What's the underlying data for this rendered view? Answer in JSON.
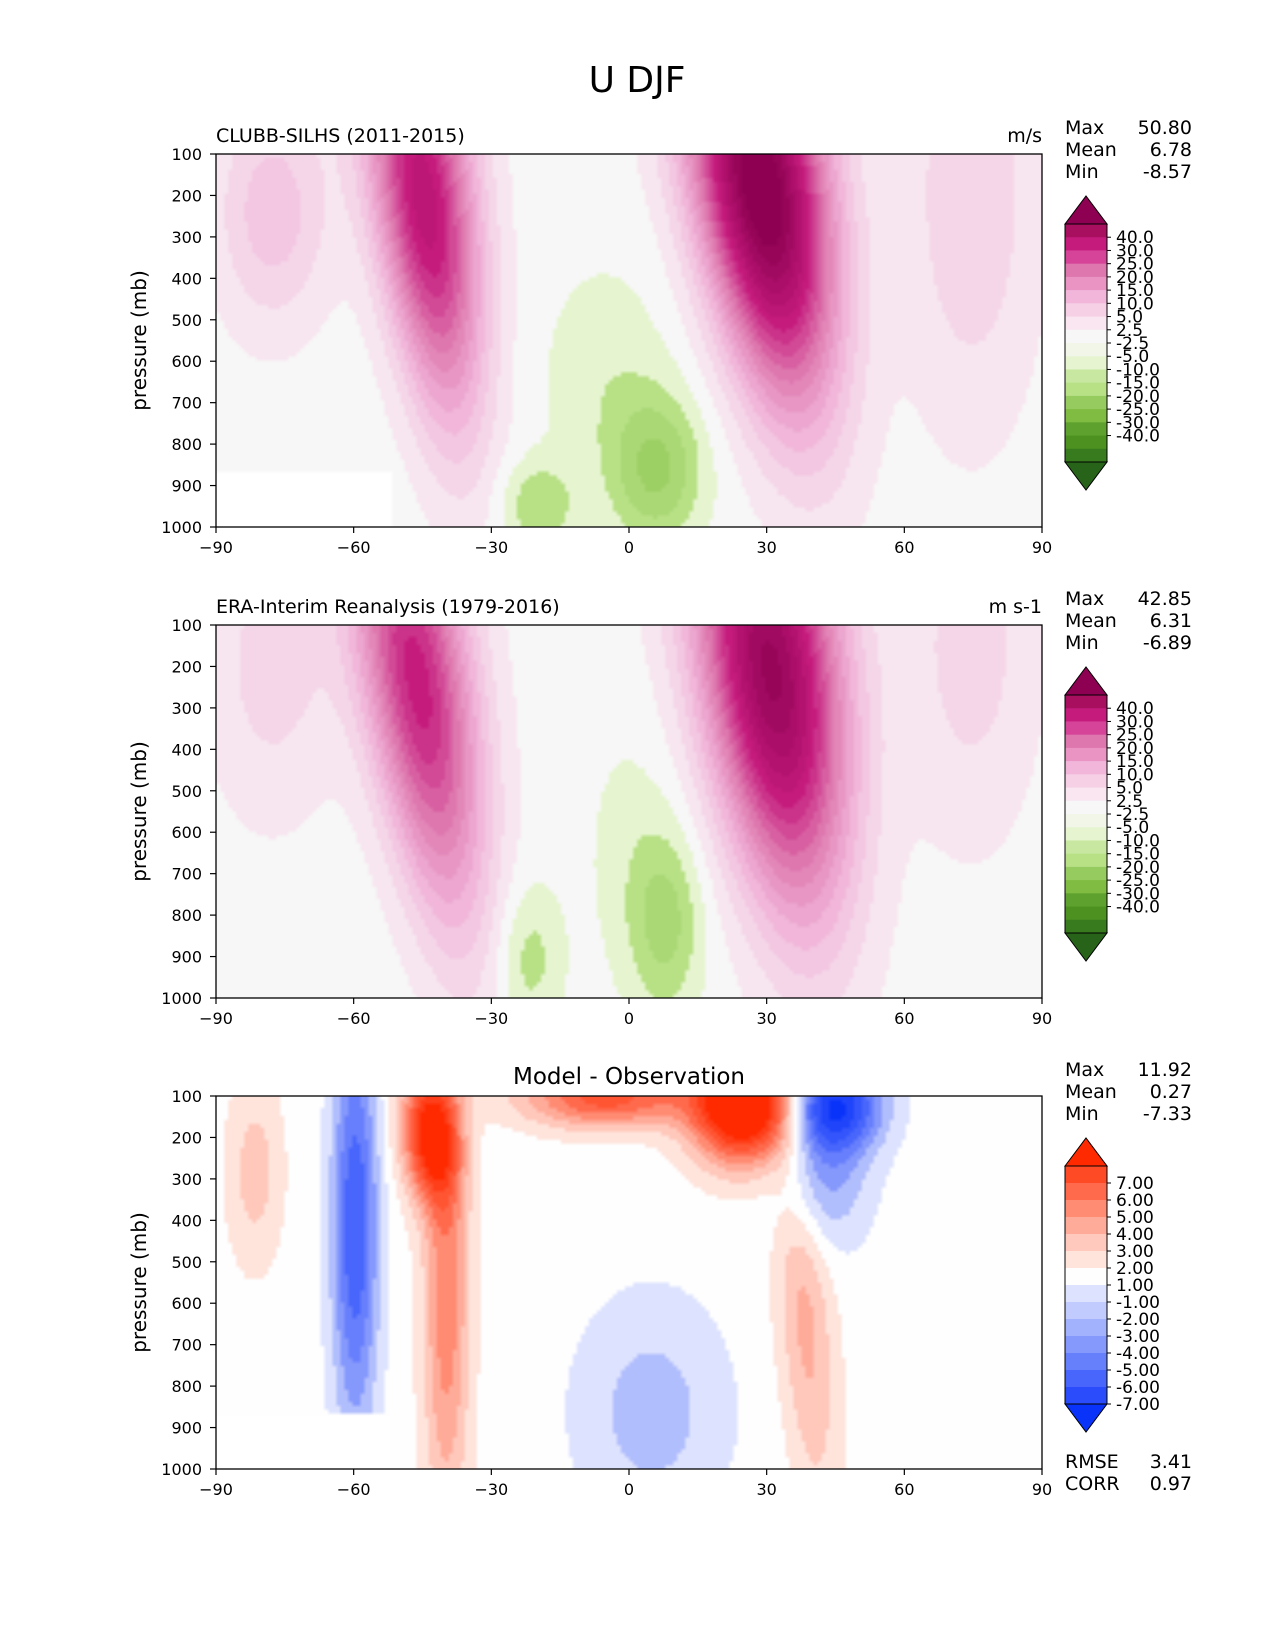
{
  "figure": {
    "title": "U DJF"
  },
  "panels": [
    {
      "title": "CLUBB-SILHS (2011-2015)",
      "units": "m/s",
      "stats": [
        {
          "label": "Max",
          "value": "50.80"
        },
        {
          "label": "Mean",
          "value": "6.78"
        },
        {
          "label": "Min",
          "value": "-8.57"
        }
      ],
      "colorbar": {
        "labels": [
          "40.0",
          "30.0",
          "25.0",
          "20.0",
          "15.0",
          "10.0",
          "5.0",
          "2.5",
          "-2.5",
          "-5.0",
          "-10.0",
          "-15.0",
          "-20.0",
          "-25.0",
          "-30.0",
          "-40.0"
        ],
        "colors": [
          "#8e0152",
          "#a8105f",
          "#c51b7d",
          "#d6449a",
          "#de77ae",
          "#e994c2",
          "#f1b6da",
          "#f6d1e6",
          "#f9e6f0",
          "#f7f7f7",
          "#f1f6e8",
          "#e6f5d0",
          "#c8e8a2",
          "#b8e186",
          "#96cb5f",
          "#7fbc41",
          "#5fa12f",
          "#4d9221",
          "#387a1e",
          "#276419"
        ],
        "under_color": "#276419",
        "over_color": "#8e0152"
      }
    },
    {
      "title": "ERA-Interim Reanalysis (1979-2016)",
      "units": "m s-1",
      "stats": [
        {
          "label": "Max",
          "value": "42.85"
        },
        {
          "label": "Mean",
          "value": "6.31"
        },
        {
          "label": "Min",
          "value": "-6.89"
        }
      ],
      "colorbar": {
        "labels": [
          "40.0",
          "30.0",
          "25.0",
          "20.0",
          "15.0",
          "10.0",
          "5.0",
          "2.5",
          "-2.5",
          "-5.0",
          "-10.0",
          "-15.0",
          "-20.0",
          "-25.0",
          "-30.0",
          "-40.0"
        ],
        "colors": [
          "#8e0152",
          "#a8105f",
          "#c51b7d",
          "#d6449a",
          "#de77ae",
          "#e994c2",
          "#f1b6da",
          "#f6d1e6",
          "#f9e6f0",
          "#f7f7f7",
          "#f1f6e8",
          "#e6f5d0",
          "#c8e8a2",
          "#b8e186",
          "#96cb5f",
          "#7fbc41",
          "#5fa12f",
          "#4d9221",
          "#387a1e",
          "#276419"
        ],
        "under_color": "#276419",
        "over_color": "#8e0152"
      }
    },
    {
      "title": "Model - Observation",
      "units": "",
      "stats": [
        {
          "label": "Max",
          "value": "11.92"
        },
        {
          "label": "Mean",
          "value": "0.27"
        },
        {
          "label": "Min",
          "value": "-7.33"
        }
      ],
      "extra_stats": [
        {
          "label": "RMSE",
          "value": "3.41"
        },
        {
          "label": "CORR",
          "value": "0.97"
        }
      ],
      "colorbar": {
        "labels": [
          "7.00",
          "6.00",
          "5.00",
          "4.00",
          "3.00",
          "2.00",
          "1.00",
          "-1.00",
          "-2.00",
          "-3.00",
          "-4.00",
          "-5.00",
          "-6.00",
          "-7.00"
        ],
        "colors": [
          "#ff2a00",
          "#ff4a26",
          "#ff6a4d",
          "#ff8c73",
          "#ffab99",
          "#ffc9bd",
          "#ffe4dc",
          "#fefefe",
          "#dde3fe",
          "#c1cbfe",
          "#a3b2fd",
          "#8598fc",
          "#6680fb",
          "#4866fb",
          "#2a4cfa",
          "#0a33fa"
        ],
        "under_color": "#0a33fa",
        "over_color": "#ff2a00"
      }
    }
  ],
  "chart_data": [
    {
      "type": "heatmap",
      "title": "CLUBB-SILHS (2011-2015)",
      "units": "m/s",
      "xlabel": "",
      "ylabel": "pressure (mb)",
      "xlim": [
        -90,
        90
      ],
      "ylim": [
        1000,
        100
      ],
      "xticks": [
        "−90",
        "−60",
        "−30",
        "0",
        "30",
        "60",
        "90"
      ],
      "yticks": [
        "100",
        "200",
        "300",
        "400",
        "500",
        "600",
        "700",
        "800",
        "900",
        "1000"
      ],
      "features": [
        {
          "lat": -46,
          "plev": 250,
          "value": 35,
          "sign": 1
        },
        {
          "lat": 28,
          "plev": 200,
          "value": 50.8,
          "sign": 1
        },
        {
          "lat": 5,
          "plev": 880,
          "value": -8.57,
          "sign": -1
        },
        {
          "lat": -20,
          "plev": 960,
          "value": -7,
          "sign": -1
        }
      ]
    },
    {
      "type": "heatmap",
      "title": "ERA-Interim Reanalysis (1979-2016)",
      "units": "m s-1",
      "xlabel": "",
      "ylabel": "pressure (mb)",
      "xlim": [
        -90,
        90
      ],
      "ylim": [
        1000,
        100
      ],
      "xticks": [
        "−90",
        "−60",
        "−30",
        "0",
        "30",
        "60",
        "90"
      ],
      "yticks": [
        "100",
        "200",
        "300",
        "400",
        "500",
        "600",
        "700",
        "800",
        "900",
        "1000"
      ],
      "features": [
        {
          "lat": -48,
          "plev": 250,
          "value": 32,
          "sign": 1
        },
        {
          "lat": 30,
          "plev": 200,
          "value": 42.85,
          "sign": 1
        },
        {
          "lat": 8,
          "plev": 850,
          "value": -6.89,
          "sign": -1
        },
        {
          "lat": -22,
          "plev": 900,
          "value": -5,
          "sign": -1
        }
      ]
    },
    {
      "type": "heatmap",
      "title": "Model - Observation",
      "units": "",
      "xlabel": "",
      "ylabel": "pressure (mb)",
      "xlim": [
        -90,
        90
      ],
      "ylim": [
        1000,
        100
      ],
      "xticks": [
        "−90",
        "−60",
        "−30",
        "0",
        "30",
        "60",
        "90"
      ],
      "yticks": [
        "100",
        "200",
        "300",
        "400",
        "500",
        "600",
        "700",
        "800",
        "900",
        "1000"
      ],
      "features": [
        {
          "lat": -44,
          "plev": 200,
          "value": 7,
          "sign": 1
        },
        {
          "lat": 25,
          "plev": 130,
          "value": 11.92,
          "sign": 1
        },
        {
          "lat": -5,
          "plev": 110,
          "value": 6,
          "sign": 1
        },
        {
          "lat": -40,
          "plev": 600,
          "value": 4,
          "sign": 1
        },
        {
          "lat": 40,
          "plev": 800,
          "value": 3,
          "sign": 1
        },
        {
          "lat": -60,
          "plev": 350,
          "value": -5,
          "sign": -1
        },
        {
          "lat": 45,
          "plev": 130,
          "value": -7.33,
          "sign": -1
        },
        {
          "lat": 5,
          "plev": 850,
          "value": -2,
          "sign": -1
        },
        {
          "lat": -82,
          "plev": 300,
          "value": 2,
          "sign": 1
        }
      ]
    }
  ]
}
